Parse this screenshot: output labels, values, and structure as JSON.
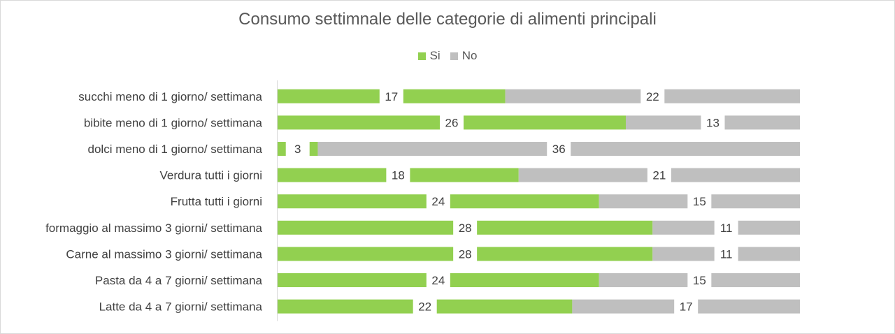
{
  "chart_data": {
    "type": "bar",
    "stacked": true,
    "orientation": "horizontal",
    "title": "Consumo settimnale delle categorie di alimenti principali",
    "categories": [
      "succhi meno di 1 giorno/ settimana",
      "bibite meno di 1 giorno/ settimana",
      "dolci meno di 1 giorno/ settimana",
      "Verdura tutti i giorni",
      "Frutta tutti i giorni",
      "formaggio al massimo 3 giorni/ settimana",
      "Carne al massimo 3 giorni/ settimana",
      "Pasta da 4 a 7 giorni/ settimana",
      "Latte da 4 a 7 giorni/ settimana"
    ],
    "series": [
      {
        "name": "Si",
        "color": "#92d050",
        "values": [
          17,
          26,
          3,
          18,
          24,
          28,
          28,
          24,
          22
        ]
      },
      {
        "name": "No",
        "color": "#bfbfbf",
        "values": [
          22,
          13,
          36,
          21,
          15,
          11,
          11,
          15,
          17
        ]
      }
    ],
    "xlim": [
      0,
      39
    ],
    "legend_position": "top",
    "grid": false,
    "xlabel": "",
    "ylabel": ""
  }
}
